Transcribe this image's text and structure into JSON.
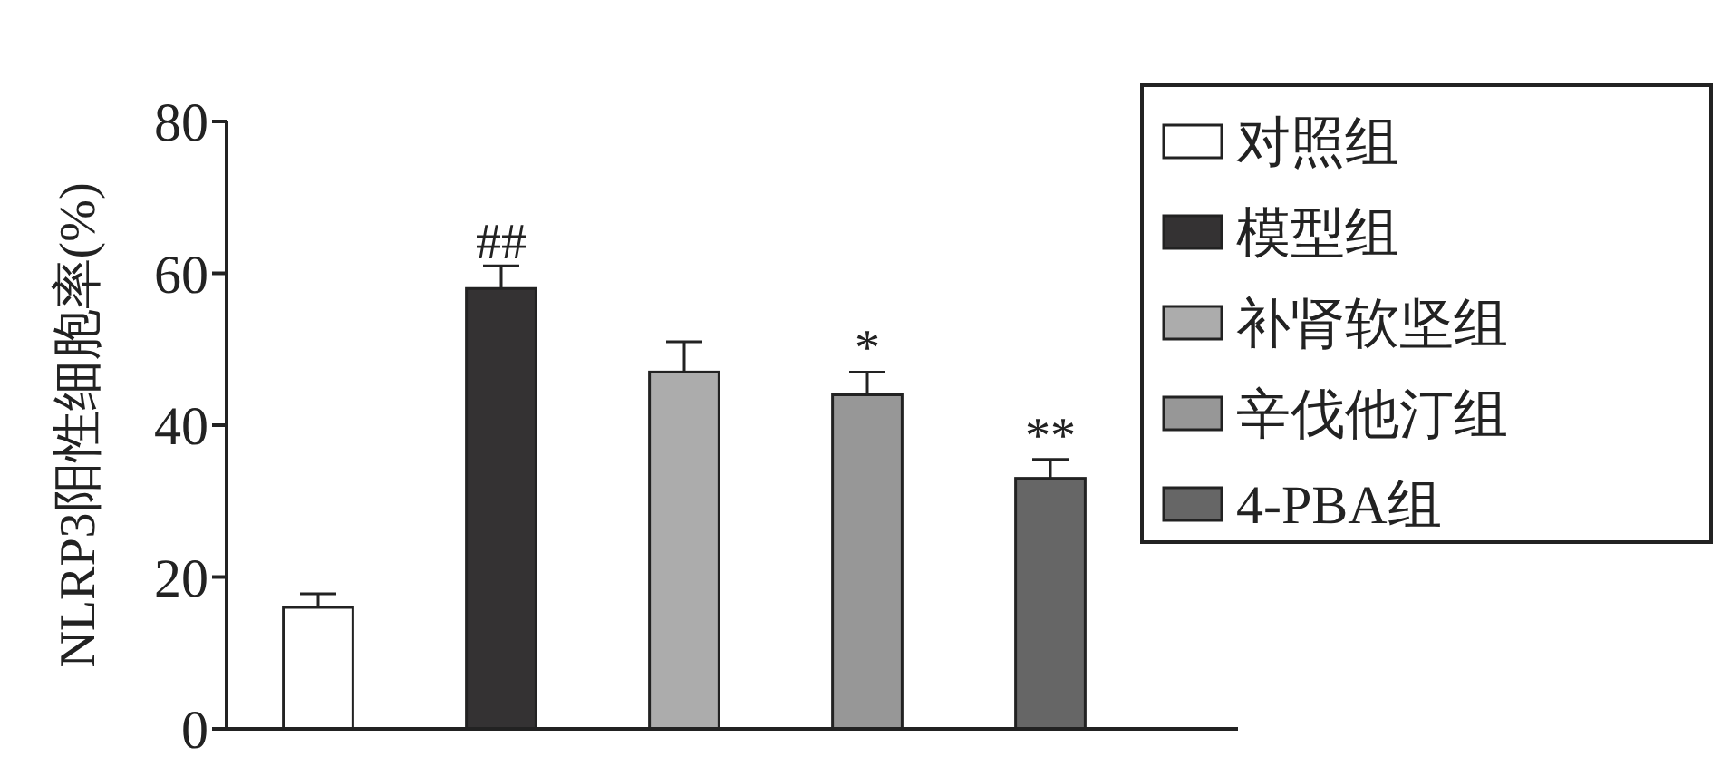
{
  "chart_data": {
    "type": "bar",
    "ylabel": "NLRP3阳性细胞率(%)",
    "categories": [
      null,
      null,
      null,
      null,
      null
    ],
    "ylim": [
      0,
      80
    ],
    "yticks": [
      0,
      20,
      40,
      60,
      80
    ],
    "grid": false,
    "legend": "top right",
    "series": [
      {
        "name": "对照组",
        "color": "#ffffff",
        "values": [
          16,
          null,
          null,
          null,
          null
        ],
        "errors": [
          1.8,
          null,
          null,
          null,
          null
        ]
      },
      {
        "name": "模型组",
        "color": "#343233",
        "values": [
          null,
          58,
          null,
          null,
          null
        ],
        "errors": [
          null,
          3,
          null,
          null,
          null
        ],
        "value_labels": [
          null,
          "##",
          null,
          null,
          null
        ]
      },
      {
        "name": "补肾软坚组",
        "color": "#acacac",
        "values": [
          null,
          null,
          47,
          null,
          null
        ],
        "errors": [
          null,
          null,
          4,
          null,
          null
        ]
      },
      {
        "name": "辛伐他汀组",
        "color": "#979797",
        "values": [
          null,
          null,
          null,
          44,
          null
        ],
        "errors": [
          null,
          null,
          null,
          3,
          null
        ],
        "value_labels": [
          null,
          null,
          null,
          "*",
          null
        ]
      },
      {
        "name": "4-PBA组",
        "color": "#666666",
        "values": [
          null,
          null,
          null,
          null,
          33
        ],
        "errors": [
          null,
          null,
          null,
          null,
          2.5
        ],
        "value_labels": [
          null,
          null,
          null,
          null,
          "**"
        ]
      }
    ]
  }
}
